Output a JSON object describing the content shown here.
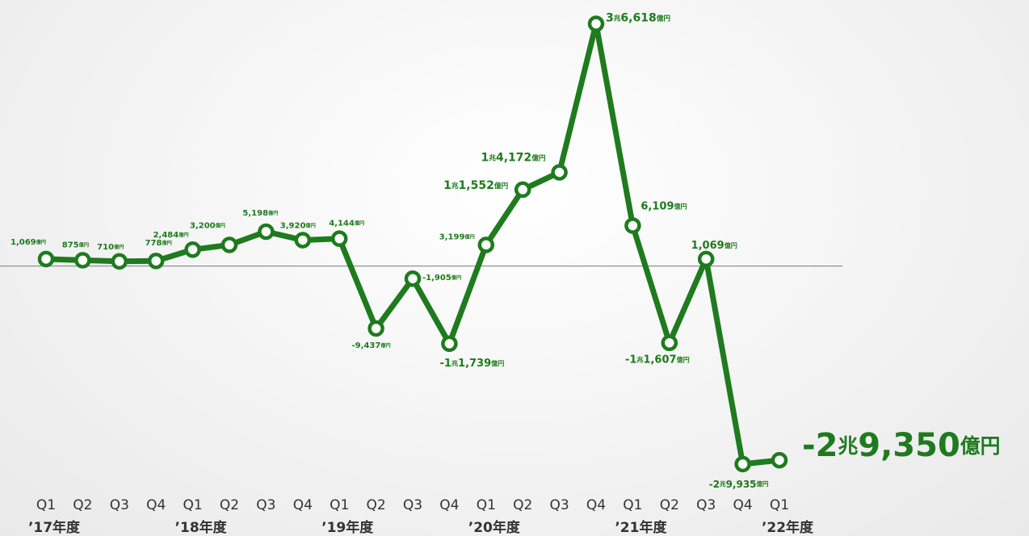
{
  "chart_data": {
    "type": "line",
    "categories": [
      "Q1",
      "Q2",
      "Q3",
      "Q4",
      "Q1",
      "Q2",
      "Q3",
      "Q4",
      "Q1",
      "Q2",
      "Q3",
      "Q4",
      "Q1",
      "Q2",
      "Q3",
      "Q4",
      "Q1",
      "Q2",
      "Q3",
      "Q4",
      "Q1"
    ],
    "years": [
      "’17年度",
      null,
      null,
      null,
      "’18年度",
      null,
      null,
      null,
      "’19年度",
      null,
      null,
      null,
      "’20年度",
      null,
      null,
      null,
      "’21年度",
      null,
      null,
      null,
      "’22年度"
    ],
    "series": [
      {
        "color": "#1e7b1e",
        "values": [
          1069,
          875,
          710,
          778,
          2484,
          3200,
          5198,
          3920,
          4144,
          -9437,
          -1905,
          -11739,
          3199,
          11552,
          14172,
          36618,
          6109,
          -11607,
          1069,
          -29935,
          -29350
        ],
        "value_labels": [
          "1,069億円",
          "875億円",
          "710億円",
          "778億円",
          "2,484億円",
          "3,200億円",
          "5,198億円",
          "3,920億円",
          "4,144億円",
          "-9,437億円",
          "-1,905億円",
          "-1兆1,739億円",
          "3,199億円",
          "1兆1,552億円",
          "1兆4,172億円",
          "3兆6,618億円",
          "6,109億円",
          "-1兆1,607億円",
          "1,069億円",
          "-2兆9,935億円",
          "-2兆9,350億円"
        ]
      }
    ],
    "ylim": [
      -33000,
      39000
    ]
  }
}
